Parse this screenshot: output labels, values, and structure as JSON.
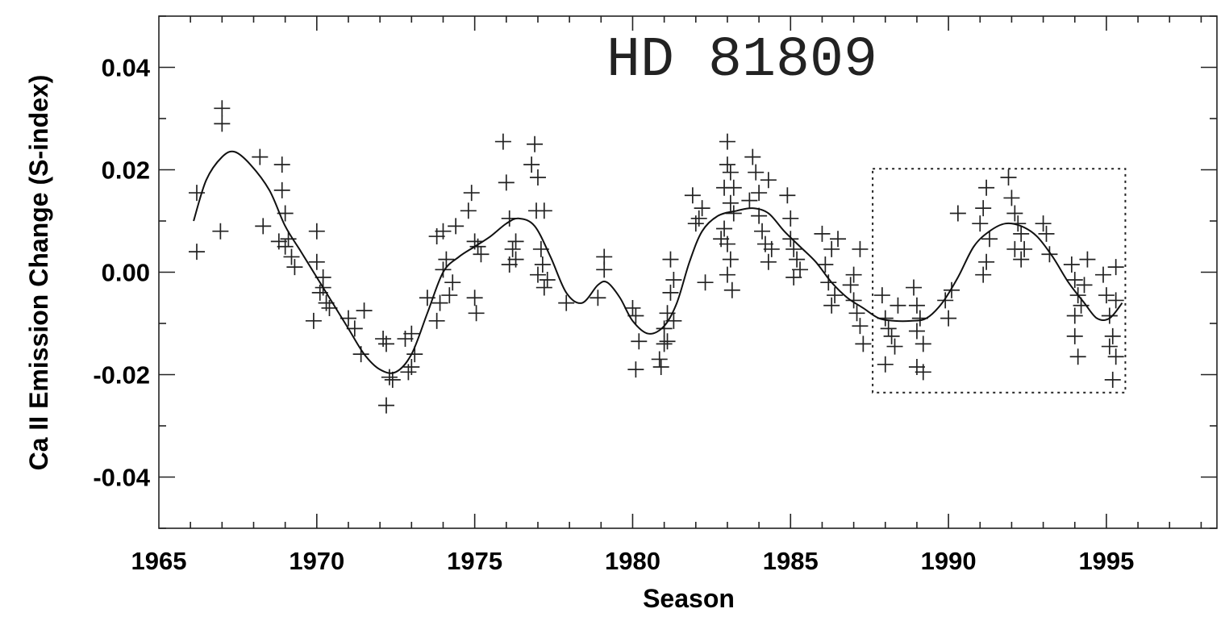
{
  "chart_data": {
    "type": "scatter",
    "title": "HD 81809",
    "xlabel": "Season",
    "ylabel": "Ca II Emission Change (S-index)",
    "xlim": [
      1965,
      1998.5
    ],
    "ylim": [
      -0.05,
      0.05
    ],
    "x_ticks": [
      1965,
      1970,
      1975,
      1980,
      1985,
      1990,
      1995
    ],
    "x_tick_labels": [
      "1965",
      "1970",
      "1975",
      "1980",
      "1985",
      "1990",
      "1995"
    ],
    "y_ticks": [
      0.04,
      0.02,
      0.0,
      -0.02,
      -0.04
    ],
    "y_tick_labels": [
      "0.04",
      "0.02",
      "0.00",
      "-0.02",
      "-0.04"
    ],
    "grid": false,
    "highlight_box": {
      "x": [
        1987.6,
        1995.6
      ],
      "y": [
        -0.0235,
        0.0202
      ],
      "style": "dotted"
    },
    "series": [
      {
        "kind": "fit-curve",
        "points": [
          [
            1966.1,
            0.01
          ],
          [
            1966.5,
            0.018
          ],
          [
            1967.0,
            0.0225
          ],
          [
            1967.4,
            0.0235
          ],
          [
            1967.9,
            0.021
          ],
          [
            1968.5,
            0.016
          ],
          [
            1969.0,
            0.009
          ],
          [
            1969.5,
            0.004
          ],
          [
            1970.0,
            -0.001
          ],
          [
            1970.5,
            -0.006
          ],
          [
            1971.0,
            -0.011
          ],
          [
            1971.5,
            -0.016
          ],
          [
            1972.0,
            -0.019
          ],
          [
            1972.5,
            -0.0195
          ],
          [
            1973.0,
            -0.016
          ],
          [
            1973.5,
            -0.008
          ],
          [
            1974.0,
            0.0
          ],
          [
            1974.5,
            0.003
          ],
          [
            1975.0,
            0.005
          ],
          [
            1975.5,
            0.007
          ],
          [
            1976.0,
            0.0095
          ],
          [
            1976.4,
            0.0105
          ],
          [
            1976.9,
            0.009
          ],
          [
            1977.4,
            0.003
          ],
          [
            1977.9,
            -0.004
          ],
          [
            1978.4,
            -0.006
          ],
          [
            1978.9,
            -0.0025
          ],
          [
            1979.2,
            -0.002
          ],
          [
            1979.6,
            -0.005
          ],
          [
            1980.0,
            -0.0095
          ],
          [
            1980.5,
            -0.012
          ],
          [
            1981.0,
            -0.0105
          ],
          [
            1981.4,
            -0.006
          ],
          [
            1981.8,
            0.002
          ],
          [
            1982.2,
            0.008
          ],
          [
            1982.7,
            0.011
          ],
          [
            1983.3,
            0.012
          ],
          [
            1983.8,
            0.0125
          ],
          [
            1984.3,
            0.0115
          ],
          [
            1984.8,
            0.008
          ],
          [
            1985.3,
            0.005
          ],
          [
            1985.8,
            0.002
          ],
          [
            1986.3,
            -0.002
          ],
          [
            1986.8,
            -0.005
          ],
          [
            1987.3,
            -0.007
          ],
          [
            1987.8,
            -0.009
          ],
          [
            1988.3,
            -0.0095
          ],
          [
            1988.8,
            -0.0095
          ],
          [
            1989.3,
            -0.009
          ],
          [
            1989.8,
            -0.006
          ],
          [
            1990.3,
            -0.001
          ],
          [
            1990.8,
            0.005
          ],
          [
            1991.3,
            0.008
          ],
          [
            1991.8,
            0.0095
          ],
          [
            1992.3,
            0.009
          ],
          [
            1992.8,
            0.007
          ],
          [
            1993.3,
            0.003
          ],
          [
            1993.8,
            -0.002
          ],
          [
            1994.3,
            -0.006
          ],
          [
            1994.7,
            -0.009
          ],
          [
            1995.1,
            -0.009
          ],
          [
            1995.5,
            -0.006
          ]
        ]
      },
      {
        "kind": "observations",
        "points": [
          [
            1966.2,
            0.0155
          ],
          [
            1966.2,
            0.004
          ],
          [
            1967.0,
            0.032
          ],
          [
            1967.0,
            0.029
          ],
          [
            1966.95,
            0.008
          ],
          [
            1968.2,
            0.0225
          ],
          [
            1968.3,
            0.009
          ],
          [
            1968.9,
            0.021
          ],
          [
            1968.9,
            0.016
          ],
          [
            1969.0,
            0.0115
          ],
          [
            1968.8,
            0.006
          ],
          [
            1969.1,
            0.0065
          ],
          [
            1969.2,
            0.003
          ],
          [
            1969.3,
            0.001
          ],
          [
            1969.0,
            0.005
          ],
          [
            1970.0,
            0.008
          ],
          [
            1970.0,
            0.002
          ],
          [
            1970.2,
            -0.001
          ],
          [
            1970.1,
            -0.004
          ],
          [
            1970.3,
            -0.006
          ],
          [
            1970.4,
            -0.007
          ],
          [
            1969.9,
            -0.0095
          ],
          [
            1970.2,
            -0.003
          ],
          [
            1971.0,
            -0.009
          ],
          [
            1971.2,
            -0.011
          ],
          [
            1971.4,
            -0.016
          ],
          [
            1971.5,
            -0.0075
          ],
          [
            1972.1,
            -0.013
          ],
          [
            1972.2,
            -0.014
          ],
          [
            1972.3,
            -0.0205
          ],
          [
            1972.4,
            -0.021
          ],
          [
            1972.2,
            -0.026
          ],
          [
            1972.9,
            -0.0195
          ],
          [
            1973.0,
            -0.0185
          ],
          [
            1972.8,
            -0.013
          ],
          [
            1973.0,
            -0.012
          ],
          [
            1973.1,
            -0.016
          ],
          [
            1973.5,
            -0.005
          ],
          [
            1973.8,
            -0.0095
          ],
          [
            1973.9,
            -0.006
          ],
          [
            1973.8,
            0.007
          ],
          [
            1974.0,
            0.008
          ],
          [
            1974.1,
            0.0025
          ],
          [
            1974.2,
            -0.0045
          ],
          [
            1974.4,
            0.009
          ],
          [
            1974.3,
            -0.002
          ],
          [
            1974.0,
            0.0005
          ],
          [
            1974.9,
            0.0155
          ],
          [
            1974.8,
            0.012
          ],
          [
            1975.0,
            0.006
          ],
          [
            1975.1,
            0.005
          ],
          [
            1975.2,
            0.0035
          ],
          [
            1975.0,
            -0.005
          ],
          [
            1975.05,
            -0.008
          ],
          [
            1975.9,
            0.0255
          ],
          [
            1976.0,
            0.0175
          ],
          [
            1976.1,
            0.0105
          ],
          [
            1976.2,
            0.0045
          ],
          [
            1976.3,
            0.0025
          ],
          [
            1976.1,
            0.0015
          ],
          [
            1976.3,
            0.006
          ],
          [
            1976.9,
            0.025
          ],
          [
            1976.8,
            0.021
          ],
          [
            1977.0,
            0.0185
          ],
          [
            1976.95,
            0.012
          ],
          [
            1977.2,
            0.012
          ],
          [
            1977.1,
            0.0045
          ],
          [
            1977.15,
            0.0015
          ],
          [
            1977.3,
            -0.0015
          ],
          [
            1977.2,
            -0.003
          ],
          [
            1977.0,
            -0.0005
          ],
          [
            1977.9,
            -0.006
          ],
          [
            1978.9,
            -0.005
          ],
          [
            1979.1,
            0.003
          ],
          [
            1979.1,
            0.0005
          ],
          [
            1980.0,
            -0.007
          ],
          [
            1980.1,
            -0.0085
          ],
          [
            1980.2,
            -0.0135
          ],
          [
            1980.1,
            -0.019
          ],
          [
            1980.85,
            -0.017
          ],
          [
            1980.9,
            -0.0185
          ],
          [
            1981.0,
            -0.014
          ],
          [
            1981.0,
            -0.011
          ],
          [
            1981.1,
            -0.008
          ],
          [
            1981.2,
            -0.004
          ],
          [
            1981.2,
            0.0025
          ],
          [
            1981.3,
            -0.0015
          ],
          [
            1981.1,
            -0.0135
          ],
          [
            1981.3,
            -0.0095
          ],
          [
            1981.9,
            0.015
          ],
          [
            1982.0,
            0.0095
          ],
          [
            1982.1,
            0.0105
          ],
          [
            1982.2,
            0.0125
          ],
          [
            1982.3,
            -0.002
          ],
          [
            1982.8,
            0.0065
          ],
          [
            1982.9,
            0.0165
          ],
          [
            1983.0,
            0.0255
          ],
          [
            1983.0,
            0.021
          ],
          [
            1983.1,
            0.0195
          ],
          [
            1983.1,
            0.0135
          ],
          [
            1983.2,
            0.0115
          ],
          [
            1982.9,
            0.0085
          ],
          [
            1983.0,
            0.0055
          ],
          [
            1983.1,
            0.0025
          ],
          [
            1983.0,
            -0.0005
          ],
          [
            1983.15,
            -0.0035
          ],
          [
            1983.2,
            0.0165
          ],
          [
            1983.7,
            0.014
          ],
          [
            1983.8,
            0.0225
          ],
          [
            1983.9,
            0.0195
          ],
          [
            1984.0,
            0.0155
          ],
          [
            1984.0,
            0.011
          ],
          [
            1984.1,
            0.008
          ],
          [
            1984.2,
            0.0055
          ],
          [
            1984.3,
            0.002
          ],
          [
            1984.3,
            0.018
          ],
          [
            1984.4,
            0.0045
          ],
          [
            1984.9,
            0.015
          ],
          [
            1985.0,
            0.0105
          ],
          [
            1985.0,
            0.0065
          ],
          [
            1985.1,
            0.0045
          ],
          [
            1985.2,
            0.0025
          ],
          [
            1985.3,
            0.0005
          ],
          [
            1985.1,
            -0.001
          ],
          [
            1986.0,
            0.0075
          ],
          [
            1986.1,
            0.0015
          ],
          [
            1986.2,
            -0.002
          ],
          [
            1986.3,
            0.0045
          ],
          [
            1986.4,
            -0.0045
          ],
          [
            1986.3,
            -0.0065
          ],
          [
            1986.5,
            0.0065
          ],
          [
            1986.9,
            -0.0025
          ],
          [
            1987.0,
            -0.0055
          ],
          [
            1987.1,
            -0.008
          ],
          [
            1987.2,
            -0.0105
          ],
          [
            1987.3,
            -0.014
          ],
          [
            1987.2,
            0.0045
          ],
          [
            1987.0,
            -0.0005
          ],
          [
            1987.9,
            -0.0045
          ],
          [
            1988.0,
            -0.009
          ],
          [
            1988.1,
            -0.011
          ],
          [
            1988.2,
            -0.0125
          ],
          [
            1988.3,
            -0.0145
          ],
          [
            1988.0,
            -0.018
          ],
          [
            1988.4,
            -0.0065
          ],
          [
            1988.9,
            -0.003
          ],
          [
            1989.0,
            -0.0065
          ],
          [
            1989.1,
            -0.009
          ],
          [
            1989.0,
            -0.0115
          ],
          [
            1989.2,
            -0.014
          ],
          [
            1989.0,
            -0.0185
          ],
          [
            1989.2,
            -0.0195
          ],
          [
            1989.9,
            -0.0055
          ],
          [
            1990.0,
            -0.009
          ],
          [
            1990.1,
            -0.0035
          ],
          [
            1990.3,
            0.0115
          ],
          [
            1991.0,
            0.0095
          ],
          [
            1991.1,
            0.0125
          ],
          [
            1991.2,
            0.0165
          ],
          [
            1991.3,
            0.0065
          ],
          [
            1991.2,
            0.002
          ],
          [
            1991.1,
            -0.0005
          ],
          [
            1991.9,
            0.0185
          ],
          [
            1992.0,
            0.0145
          ],
          [
            1992.1,
            0.0115
          ],
          [
            1992.2,
            0.0095
          ],
          [
            1992.3,
            0.0075
          ],
          [
            1992.1,
            0.0045
          ],
          [
            1992.3,
            0.0025
          ],
          [
            1992.4,
            0.0045
          ],
          [
            1993.0,
            0.0095
          ],
          [
            1993.1,
            0.0075
          ],
          [
            1993.2,
            0.0035
          ],
          [
            1993.9,
            0.0015
          ],
          [
            1994.0,
            -0.0015
          ],
          [
            1994.1,
            -0.0045
          ],
          [
            1994.0,
            -0.0085
          ],
          [
            1994.2,
            -0.0065
          ],
          [
            1994.3,
            -0.0025
          ],
          [
            1994.1,
            -0.0165
          ],
          [
            1994.0,
            -0.0125
          ],
          [
            1994.4,
            0.0025
          ],
          [
            1994.9,
            -0.0005
          ],
          [
            1995.0,
            -0.0045
          ],
          [
            1995.1,
            -0.0085
          ],
          [
            1995.2,
            -0.0125
          ],
          [
            1995.1,
            -0.0145
          ],
          [
            1995.3,
            -0.0165
          ],
          [
            1995.2,
            -0.021
          ],
          [
            1995.3,
            -0.0055
          ],
          [
            1995.3,
            0.001
          ]
        ]
      }
    ]
  }
}
